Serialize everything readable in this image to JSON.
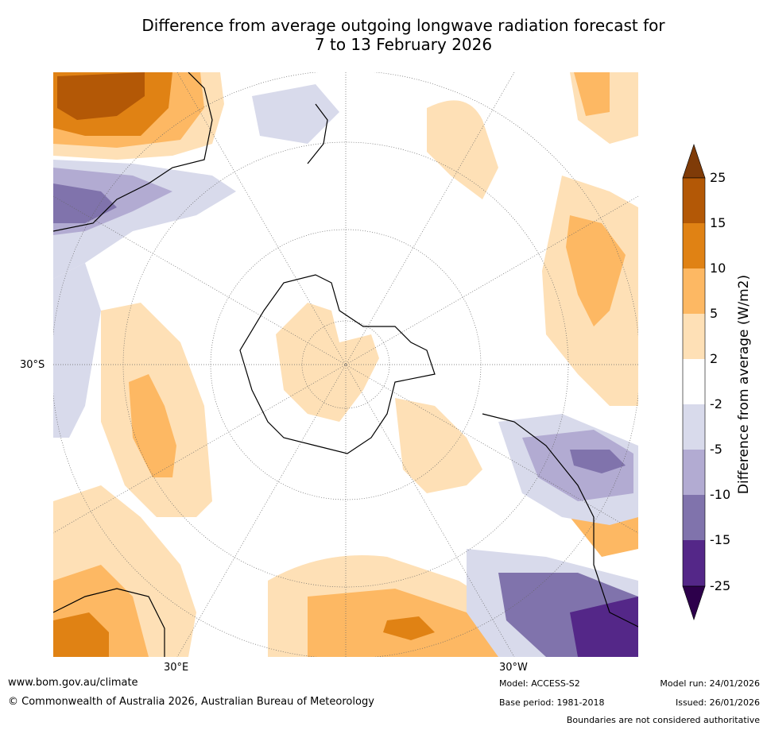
{
  "title": {
    "line1": "Difference from average outgoing longwave radiation forecast for",
    "line2": "7 to 13 February 2026"
  },
  "map": {
    "projection": "south-polar-stereographic",
    "lat_labels": [
      "30°S"
    ],
    "lon_labels": [
      "30°E",
      "30°W"
    ]
  },
  "colorbar": {
    "title": "Difference from average (W/m2)",
    "tick_labels": [
      "25",
      "15",
      "10",
      "5",
      "2",
      "-2",
      "-5",
      "-10",
      "-15",
      "-25"
    ],
    "colors": {
      "gt25": "#7f3b08",
      "c15_25": "#b35806",
      "c10_15": "#e08214",
      "c5_10": "#fdb863",
      "c2_5": "#fee0b6",
      "neutral": "#ffffff",
      "m2_5": "#d8daeb",
      "m5_10": "#b2abd2",
      "m10_15": "#8073ac",
      "m15_25": "#542788",
      "lt_m25": "#2d004b"
    }
  },
  "footer": {
    "url": "www.bom.gov.au/climate",
    "copyright": "© Commonwealth of Australia 2026, Australian Bureau of Meteorology",
    "model": "Model: ACCESS-S2",
    "base_period": "Base period: 1981-2018",
    "model_run": "Model run: 24/01/2026",
    "issued": "Issued: 26/01/2026",
    "disclaimer": "Boundaries are not considered authoritative"
  }
}
